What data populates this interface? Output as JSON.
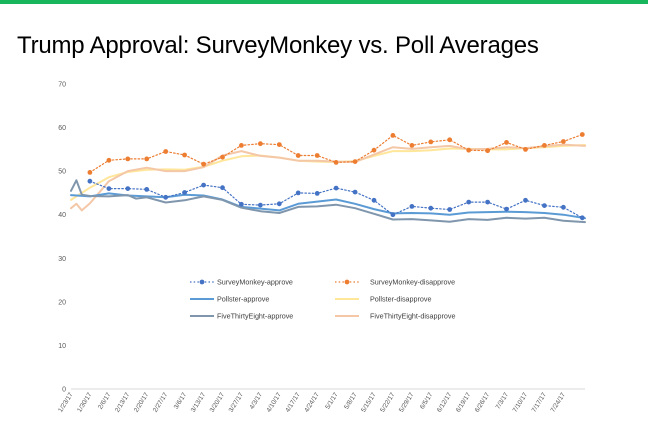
{
  "page": {
    "title": "Trump Approval: SurveyMonkey vs. Poll Averages",
    "accent_color": "#17b55c"
  },
  "chart_data": {
    "type": "line",
    "title": "Trump Approval: SurveyMonkey vs. Poll Averages",
    "xlabel": "",
    "ylabel": "",
    "ylim": [
      0,
      70
    ],
    "yticks": [
      0,
      10,
      20,
      30,
      40,
      50,
      60,
      70
    ],
    "xrange": [
      "1/23/17",
      "8/1/17"
    ],
    "xticks": [
      "1/23/17",
      "1/30/17",
      "2/6/17",
      "2/13/17",
      "2/20/17",
      "2/27/17",
      "3/6/17",
      "3/13/17",
      "3/20/17",
      "3/27/17",
      "4/3/17",
      "4/10/17",
      "4/17/17",
      "4/24/17",
      "5/1/17",
      "5/8/17",
      "5/15/17",
      "5/22/17",
      "5/29/17",
      "6/5/17",
      "6/12/17",
      "6/19/17",
      "6/26/17",
      "7/3/17",
      "7/10/17",
      "7/17/17",
      "7/24/17"
    ],
    "grid": false,
    "legend": "bottom-center",
    "series": [
      {
        "name": "SurveyMonkey-approve",
        "style": "dotted-markers",
        "color": "#4472c4",
        "points": [
          [
            "1/30/17",
            47.7
          ],
          [
            "2/6/17",
            46.0
          ],
          [
            "2/13/17",
            46.0
          ],
          [
            "2/20/17",
            45.8
          ],
          [
            "2/27/17",
            44.0
          ],
          [
            "3/6/17",
            45.1
          ],
          [
            "3/13/17",
            46.8
          ],
          [
            "3/20/17",
            46.2
          ],
          [
            "3/27/17",
            42.4
          ],
          [
            "4/3/17",
            42.2
          ],
          [
            "4/10/17",
            42.5
          ],
          [
            "4/17/17",
            45.0
          ],
          [
            "4/24/17",
            44.9
          ],
          [
            "5/1/17",
            46.1
          ],
          [
            "5/8/17",
            45.2
          ],
          [
            "5/15/17",
            43.3
          ],
          [
            "5/22/17",
            40.0
          ],
          [
            "5/29/17",
            41.9
          ],
          [
            "6/5/17",
            41.5
          ],
          [
            "6/12/17",
            41.2
          ],
          [
            "6/19/17",
            42.9
          ],
          [
            "6/26/17",
            42.9
          ],
          [
            "7/3/17",
            41.3
          ],
          [
            "7/10/17",
            43.3
          ],
          [
            "7/17/17",
            42.1
          ],
          [
            "7/24/17",
            41.7
          ],
          [
            "7/31/17",
            39.3
          ]
        ]
      },
      {
        "name": "SurveyMonkey-disapprove",
        "style": "dotted-markers",
        "color": "#ed7d31",
        "points": [
          [
            "1/30/17",
            49.7
          ],
          [
            "2/6/17",
            52.5
          ],
          [
            "2/13/17",
            52.8
          ],
          [
            "2/20/17",
            52.8
          ],
          [
            "2/27/17",
            54.5
          ],
          [
            "3/6/17",
            53.7
          ],
          [
            "3/13/17",
            51.6
          ],
          [
            "3/20/17",
            53.2
          ],
          [
            "3/27/17",
            55.9
          ],
          [
            "4/3/17",
            56.3
          ],
          [
            "4/10/17",
            56.1
          ],
          [
            "4/17/17",
            53.6
          ],
          [
            "4/24/17",
            53.6
          ],
          [
            "5/1/17",
            52.0
          ],
          [
            "5/8/17",
            52.2
          ],
          [
            "5/15/17",
            54.8
          ],
          [
            "5/22/17",
            58.2
          ],
          [
            "5/29/17",
            55.9
          ],
          [
            "6/5/17",
            56.7
          ],
          [
            "6/12/17",
            57.2
          ],
          [
            "6/19/17",
            54.8
          ],
          [
            "6/26/17",
            54.7
          ],
          [
            "7/3/17",
            56.6
          ],
          [
            "7/10/17",
            55.0
          ],
          [
            "7/17/17",
            55.9
          ],
          [
            "7/24/17",
            56.8
          ],
          [
            "7/31/17",
            58.4
          ]
        ]
      },
      {
        "name": "Pollster-approve",
        "style": "solid",
        "color": "#5b9bd5",
        "points": [
          [
            "1/23/17",
            44.5
          ],
          [
            "1/30/17",
            44.2
          ],
          [
            "2/6/17",
            44.9
          ],
          [
            "2/13/17",
            44.4
          ],
          [
            "2/20/17",
            44.2
          ],
          [
            "2/27/17",
            44.0
          ],
          [
            "3/6/17",
            44.6
          ],
          [
            "3/13/17",
            44.4
          ],
          [
            "3/20/17",
            43.5
          ],
          [
            "3/27/17",
            41.8
          ],
          [
            "4/3/17",
            41.4
          ],
          [
            "4/10/17",
            41.0
          ],
          [
            "4/17/17",
            42.5
          ],
          [
            "4/24/17",
            43.0
          ],
          [
            "5/1/17",
            43.5
          ],
          [
            "5/8/17",
            42.5
          ],
          [
            "5/15/17",
            41.3
          ],
          [
            "5/22/17",
            40.3
          ],
          [
            "5/29/17",
            40.4
          ],
          [
            "6/5/17",
            40.3
          ],
          [
            "6/12/17",
            40.0
          ],
          [
            "6/19/17",
            40.5
          ],
          [
            "6/26/17",
            40.6
          ],
          [
            "7/3/17",
            40.7
          ],
          [
            "7/10/17",
            40.6
          ],
          [
            "7/17/17",
            40.4
          ],
          [
            "7/24/17",
            40.0
          ],
          [
            "8/1/17",
            39.2
          ]
        ]
      },
      {
        "name": "Pollster-disapprove",
        "style": "solid",
        "color": "#ffe699",
        "points": [
          [
            "1/23/17",
            43.4
          ],
          [
            "1/30/17",
            46.2
          ],
          [
            "2/6/17",
            48.6
          ],
          [
            "2/13/17",
            49.8
          ],
          [
            "2/20/17",
            50.3
          ],
          [
            "2/27/17",
            50.4
          ],
          [
            "3/6/17",
            50.3
          ],
          [
            "3/13/17",
            51.0
          ],
          [
            "3/20/17",
            52.4
          ],
          [
            "3/27/17",
            53.4
          ],
          [
            "4/3/17",
            53.6
          ],
          [
            "4/10/17",
            53.1
          ],
          [
            "4/17/17",
            52.4
          ],
          [
            "4/24/17",
            52.2
          ],
          [
            "5/1/17",
            52.1
          ],
          [
            "5/8/17",
            52.3
          ],
          [
            "5/15/17",
            53.5
          ],
          [
            "5/22/17",
            54.6
          ],
          [
            "5/29/17",
            54.6
          ],
          [
            "6/5/17",
            54.8
          ],
          [
            "6/12/17",
            55.2
          ],
          [
            "6/19/17",
            55.1
          ],
          [
            "6/26/17",
            55.0
          ],
          [
            "7/3/17",
            55.0
          ],
          [
            "7/10/17",
            55.3
          ],
          [
            "7/17/17",
            55.5
          ],
          [
            "7/24/17",
            55.8
          ],
          [
            "8/1/17",
            56.0
          ]
        ]
      },
      {
        "name": "FiveThirtyEight-approve",
        "style": "solid",
        "color": "#7f96ad",
        "points": [
          [
            "1/23/17",
            45.5
          ],
          [
            "1/25/17",
            47.9
          ],
          [
            "1/27/17",
            44.6
          ],
          [
            "1/30/17",
            44.3
          ],
          [
            "2/6/17",
            44.2
          ],
          [
            "2/13/17",
            44.5
          ],
          [
            "2/16/17",
            43.7
          ],
          [
            "2/20/17",
            44.0
          ],
          [
            "2/27/17",
            42.8
          ],
          [
            "3/6/17",
            43.3
          ],
          [
            "3/13/17",
            44.2
          ],
          [
            "3/20/17",
            43.4
          ],
          [
            "3/27/17",
            41.6
          ],
          [
            "4/3/17",
            40.8
          ],
          [
            "4/10/17",
            40.4
          ],
          [
            "4/17/17",
            41.8
          ],
          [
            "4/24/17",
            41.9
          ],
          [
            "5/1/17",
            42.3
          ],
          [
            "5/8/17",
            41.5
          ],
          [
            "5/15/17",
            40.2
          ],
          [
            "5/22/17",
            38.9
          ],
          [
            "5/29/17",
            39.0
          ],
          [
            "6/5/17",
            38.7
          ],
          [
            "6/12/17",
            38.4
          ],
          [
            "6/19/17",
            39.0
          ],
          [
            "6/26/17",
            38.8
          ],
          [
            "7/3/17",
            39.3
          ],
          [
            "7/10/17",
            39.1
          ],
          [
            "7/17/17",
            39.3
          ],
          [
            "7/24/17",
            38.6
          ],
          [
            "8/1/17",
            38.3
          ]
        ]
      },
      {
        "name": "FiveThirtyEight-disapprove",
        "style": "solid",
        "color": "#f4c7a7",
        "points": [
          [
            "1/23/17",
            41.5
          ],
          [
            "1/25/17",
            42.5
          ],
          [
            "1/27/17",
            41.0
          ],
          [
            "1/30/17",
            42.6
          ],
          [
            "2/6/17",
            47.7
          ],
          [
            "2/13/17",
            50.0
          ],
          [
            "2/20/17",
            50.8
          ],
          [
            "2/27/17",
            50.0
          ],
          [
            "3/6/17",
            50.0
          ],
          [
            "3/13/17",
            50.9
          ],
          [
            "3/20/17",
            53.6
          ],
          [
            "3/27/17",
            54.6
          ],
          [
            "4/3/17",
            53.5
          ],
          [
            "4/10/17",
            53.1
          ],
          [
            "4/17/17",
            52.4
          ],
          [
            "4/24/17",
            52.4
          ],
          [
            "5/1/17",
            52.2
          ],
          [
            "5/8/17",
            52.1
          ],
          [
            "5/15/17",
            53.8
          ],
          [
            "5/22/17",
            55.5
          ],
          [
            "5/29/17",
            55.1
          ],
          [
            "6/5/17",
            55.5
          ],
          [
            "6/12/17",
            55.8
          ],
          [
            "6/19/17",
            55.0
          ],
          [
            "6/26/17",
            55.1
          ],
          [
            "7/3/17",
            55.5
          ],
          [
            "7/10/17",
            55.3
          ],
          [
            "7/17/17",
            55.7
          ],
          [
            "7/24/17",
            56.1
          ],
          [
            "8/1/17",
            55.8
          ]
        ]
      }
    ]
  }
}
